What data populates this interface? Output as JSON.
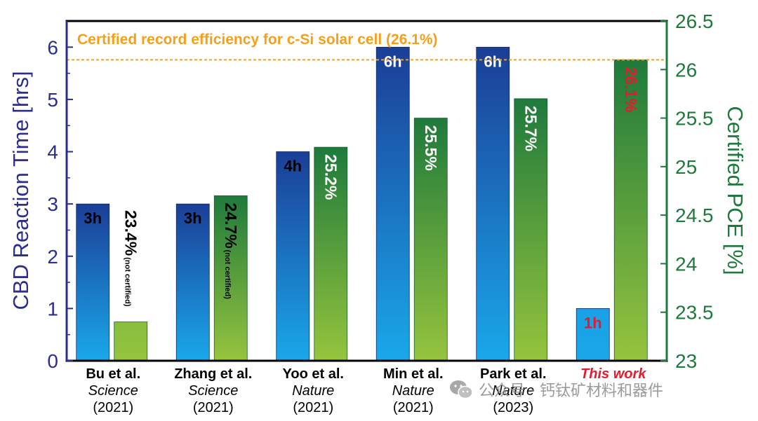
{
  "chart_data": {
    "type": "bar",
    "ylabel_left": "CBD Reaction Time [hrs]",
    "ylabel_right": "Certified PCE [%]",
    "ylim_left": [
      0,
      6.5
    ],
    "ylim_right": [
      23,
      26.5
    ],
    "yticks_left": [
      "0",
      "1",
      "2",
      "3",
      "4",
      "5",
      "6"
    ],
    "yticks_right": [
      "23",
      "23.5",
      "24",
      "24.5",
      "25",
      "25.5",
      "26",
      "26.5"
    ],
    "reference_line": {
      "label": "Certified record efficiency for c-Si solar cell (26.1%)",
      "value": 26.1,
      "axis": "right"
    },
    "categories": [
      {
        "name": "Bu et al.",
        "journal": "Science",
        "year": "(2021)",
        "highlight": false
      },
      {
        "name": "Zhang et al.",
        "journal": "Science",
        "year": "(2021)",
        "highlight": false
      },
      {
        "name": "Yoo et al.",
        "journal": "Nature",
        "year": "(2021)",
        "highlight": false
      },
      {
        "name": "Min et al.",
        "journal": "Nature",
        "year": "(2021)",
        "highlight": false
      },
      {
        "name": "Park et al.",
        "journal": "Nature",
        "year": "(2023)",
        "highlight": false
      },
      {
        "name": "This work",
        "journal": "",
        "year": "",
        "highlight": true
      }
    ],
    "series": [
      {
        "axis": "left",
        "values": [
          3,
          3,
          4,
          6,
          6,
          1
        ],
        "labels": [
          "3h",
          "3h",
          "4h",
          "6h",
          "6h",
          "1h"
        ]
      },
      {
        "axis": "right",
        "values": [
          23.4,
          24.7,
          25.2,
          25.5,
          25.7,
          26.1
        ],
        "labels": [
          "23.4%",
          "24.7%",
          "25.2%",
          "25.5%",
          "25.7%",
          "26.1%"
        ],
        "notes": [
          "(not certified)",
          "(not certified)",
          "",
          "",
          "",
          ""
        ]
      }
    ]
  },
  "watermark": "公众号 · 钙钛矿材料和器件",
  "colors": {
    "left_axis": "#2b2e8f",
    "right_axis": "#1d7a3a",
    "reference_line": "#f5a01a",
    "highlight_text": "#e8192c",
    "time_bar_top": "#1b3e96",
    "time_bar_bottom": "#1aa8ea",
    "pce_bar_top": "#1e7a3c",
    "pce_bar_bottom": "#96c43d"
  }
}
